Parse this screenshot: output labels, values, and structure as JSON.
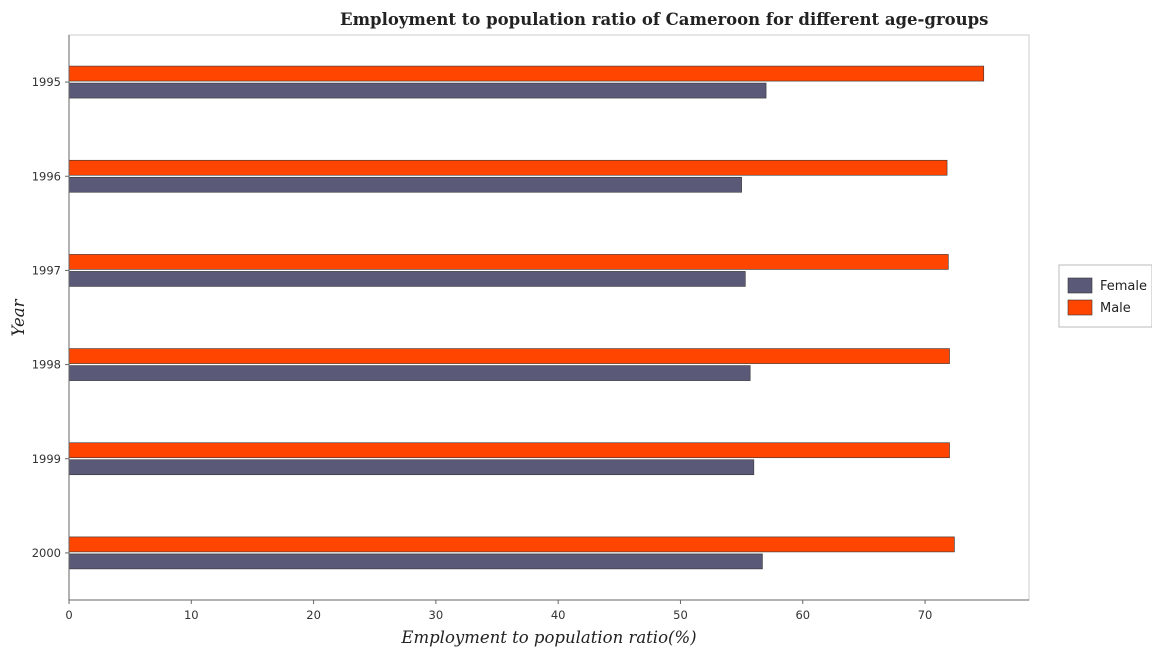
{
  "chart_data": {
    "type": "bar",
    "orientation": "horizontal",
    "title": "Employment to population ratio of Cameroon for different age-groups",
    "xlabel": "Employment to population ratio(%)",
    "ylabel": "Year",
    "categories": [
      "1995",
      "1996",
      "1997",
      "1998",
      "1999",
      "2000"
    ],
    "series": [
      {
        "name": "Female",
        "color": "#5a5a78",
        "values": [
          57.0,
          55.0,
          55.3,
          55.7,
          56.0,
          56.7
        ]
      },
      {
        "name": "Male",
        "color": "#ff4500",
        "values": [
          74.8,
          71.8,
          71.9,
          72.0,
          72.0,
          72.4
        ]
      }
    ],
    "xlim": [
      0,
      78.5
    ],
    "xticks": [
      0,
      10,
      20,
      30,
      40,
      50,
      60,
      70
    ],
    "grid": false,
    "legend_position": "right"
  }
}
